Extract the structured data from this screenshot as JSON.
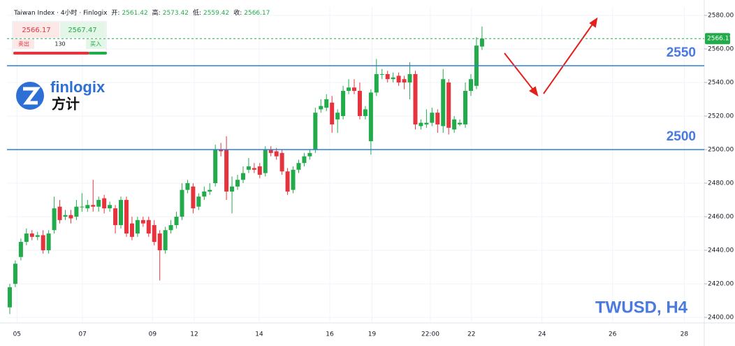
{
  "chart_data": {
    "type": "candlestick",
    "header": {
      "instrument": "Taiwan Index · 4小时 · Finlogix",
      "ohlc": [
        {
          "label": "开:",
          "value": "2561.42"
        },
        {
          "label": "高:",
          "value": "2573.42"
        },
        {
          "label": "低:",
          "value": "2559.42"
        },
        {
          "label": "收:",
          "value": "2566.17"
        }
      ]
    },
    "widget": {
      "sell_price": "2566.17",
      "buy_price": "2567.47",
      "sell_label": "卖出",
      "spread": "130",
      "buy_label": "买入"
    },
    "logo": {
      "name": "finlogix",
      "name_cn": "方计"
    },
    "symbol": "TWUSD, H4",
    "up_color": "#22ab4a",
    "down_color": "#e5343d",
    "level_color": "#2e7fd6",
    "open": [
      2406,
      2420,
      2436,
      2445,
      2450,
      2448,
      2449,
      2440,
      2452,
      2466,
      2460,
      2461,
      2460,
      2466,
      2465,
      2467,
      2466,
      2471,
      2465,
      2465,
      2455,
      2470,
      2456,
      2450,
      2458,
      2458,
      2455,
      2450,
      2440,
      2452,
      2455,
      2460,
      2476,
      2478,
      2466,
      2472,
      2475,
      2480,
      2500,
      2500,
      2475,
      2478,
      2482,
      2488,
      2489,
      2490,
      2486,
      2500,
      2499,
      2498,
      2487,
      2476,
      2488,
      2492,
      2496,
      2500,
      2524,
      2525,
      2528,
      2518,
      2520,
      2535,
      2537,
      2535,
      2520,
      2505,
      2534,
      2545,
      2545,
      2542,
      2544,
      2542,
      2540,
      2545,
      2514,
      2515,
      2516,
      2522,
      2514,
      2540,
      2512,
      2515,
      2515,
      2535,
      2538,
      2561.42
    ],
    "high": [
      2420,
      2434,
      2447,
      2453,
      2452,
      2451,
      2452,
      2452,
      2472,
      2470,
      2464,
      2464,
      2470,
      2474,
      2470,
      2482,
      2472,
      2473,
      2469,
      2467,
      2472,
      2472,
      2460,
      2460,
      2460,
      2460,
      2458,
      2452,
      2454,
      2458,
      2463,
      2480,
      2482,
      2480,
      2474,
      2478,
      2480,
      2503,
      2504,
      2508,
      2484,
      2485,
      2490,
      2495,
      2492,
      2492,
      2502,
      2502,
      2501,
      2500,
      2489,
      2490,
      2494,
      2498,
      2500,
      2525,
      2530,
      2533,
      2532,
      2524,
      2538,
      2542,
      2542,
      2540,
      2526,
      2536,
      2554,
      2548,
      2547,
      2546,
      2546,
      2544,
      2552,
      2547,
      2518,
      2524,
      2525,
      2524,
      2548,
      2542,
      2520,
      2518,
      2540,
      2545,
      2567,
      2573.42
    ],
    "low": [
      2402,
      2418,
      2434,
      2443,
      2446,
      2446,
      2438,
      2438,
      2450,
      2456,
      2458,
      2456,
      2458,
      2463,
      2463,
      2463,
      2463,
      2462,
      2463,
      2450,
      2453,
      2448,
      2446,
      2448,
      2454,
      2448,
      2443,
      2422,
      2438,
      2450,
      2453,
      2458,
      2474,
      2462,
      2464,
      2470,
      2473,
      2478,
      2496,
      2470,
      2462,
      2476,
      2480,
      2486,
      2486,
      2483,
      2484,
      2496,
      2494,
      2485,
      2473,
      2474,
      2486,
      2490,
      2494,
      2498,
      2522,
      2523,
      2510,
      2510,
      2518,
      2533,
      2533,
      2518,
      2518,
      2497,
      2532,
      2542,
      2540,
      2540,
      2538,
      2536,
      2530,
      2512,
      2512,
      2513,
      2514,
      2510,
      2510,
      2509,
      2510,
      2514,
      2513,
      2532,
      2536,
      2559.42
    ],
    "close": [
      2418,
      2432,
      2445,
      2450,
      2448,
      2449,
      2440,
      2450,
      2465,
      2458,
      2461,
      2459,
      2466,
      2466,
      2467,
      2466,
      2470,
      2465,
      2467,
      2455,
      2470,
      2450,
      2448,
      2458,
      2456,
      2450,
      2445,
      2440,
      2452,
      2455,
      2460,
      2476,
      2480,
      2465,
      2472,
      2475,
      2476,
      2500,
      2499,
      2475,
      2478,
      2482,
      2486,
      2490,
      2488,
      2485,
      2500,
      2498,
      2496,
      2487,
      2475,
      2488,
      2492,
      2496,
      2498,
      2522,
      2526,
      2530,
      2515,
      2522,
      2535,
      2537,
      2535,
      2520,
      2524,
      2534,
      2545,
      2545,
      2542,
      2543,
      2540,
      2540,
      2545,
      2515,
      2516,
      2516,
      2522,
      2515,
      2542,
      2513,
      2518,
      2516,
      2535,
      2542,
      2562,
      2566.17
    ],
    "xlim": [
      -0.5,
      125
    ],
    "xticks": [
      {
        "value": 1.3,
        "label": "05"
      },
      {
        "value": 13.1,
        "label": "07"
      },
      {
        "value": 25.7,
        "label": "09"
      },
      {
        "value": 33.2,
        "label": "12"
      },
      {
        "value": 44.9,
        "label": "14"
      },
      {
        "value": 57.6,
        "label": "16"
      },
      {
        "value": 65.2,
        "label": "19"
      },
      {
        "value": 75.7,
        "label": "22:00"
      },
      {
        "value": 83.1,
        "label": "22"
      },
      {
        "value": 95.8,
        "label": "24"
      },
      {
        "value": 108.5,
        "label": "26"
      },
      {
        "value": 121.4,
        "label": "28"
      }
    ],
    "ylim": [
      2396.7,
      2585
    ],
    "yticks": [
      {
        "value": 2400,
        "label": "2400.00"
      },
      {
        "value": 2420,
        "label": "2420.00"
      },
      {
        "value": 2440,
        "label": "2440.00"
      },
      {
        "value": 2460,
        "label": "2460.00"
      },
      {
        "value": 2480,
        "label": "2480.00"
      },
      {
        "value": 2500,
        "label": "2500.00"
      },
      {
        "value": 2520,
        "label": "2520.00"
      },
      {
        "value": 2540,
        "label": "2540.00"
      },
      {
        "value": 2560,
        "label": "2560.00"
      },
      {
        "value": 2580,
        "label": "2580.00"
      }
    ],
    "levels": [
      2550,
      2500
    ],
    "current_price": 2566.17
  }
}
